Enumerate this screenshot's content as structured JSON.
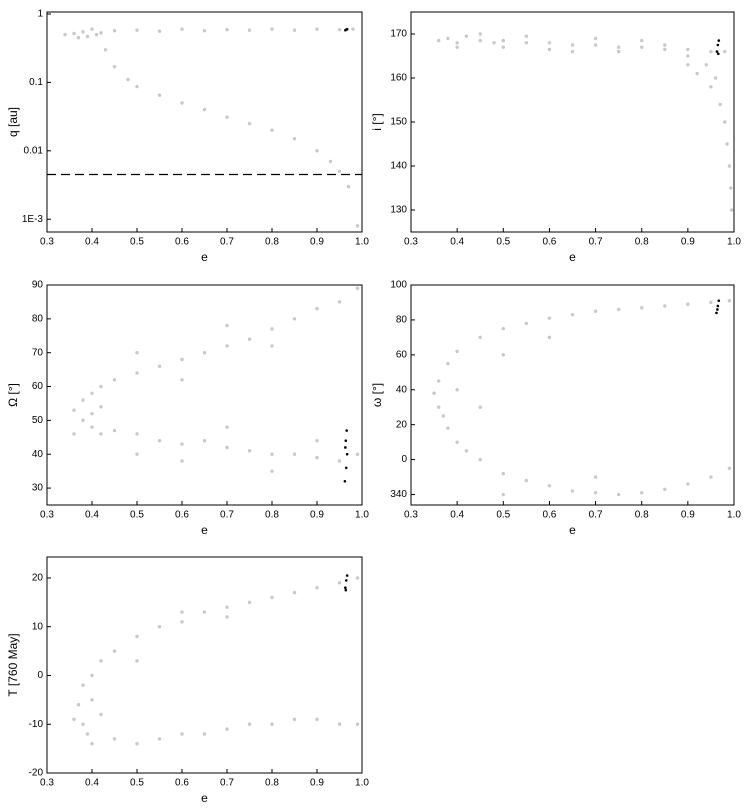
{
  "chart_data": [
    {
      "type": "scatter",
      "x_label": "e",
      "y_label": "q [au]",
      "log_y": true,
      "xlim": [
        0.3,
        1.0
      ],
      "ylim": [
        0.00065,
        1.07
      ],
      "xticks": [
        0.3,
        0.4,
        0.5,
        0.6,
        0.7,
        0.8,
        0.9,
        {
          "value": 1.0,
          "label": "1.0"
        }
      ],
      "yticks": [
        {
          "value": 0.001,
          "label": "1E-3"
        },
        0.01,
        0.1,
        1
      ],
      "reference_line": 0.0045,
      "series": [
        {
          "color": "#c8c8c8",
          "x": [
            0.34,
            0.36,
            0.38,
            0.4,
            0.42,
            0.45,
            0.5,
            0.55,
            0.6,
            0.65,
            0.7,
            0.75,
            0.8,
            0.85,
            0.9,
            0.95,
            0.98,
            0.37,
            0.39,
            0.41,
            0.43,
            0.45,
            0.48,
            0.5,
            0.55,
            0.6,
            0.65,
            0.7,
            0.75,
            0.8,
            0.85,
            0.9,
            0.93,
            0.95,
            0.97,
            0.99
          ],
          "y": [
            0.5,
            0.52,
            0.55,
            0.6,
            0.53,
            0.57,
            0.58,
            0.56,
            0.6,
            0.57,
            0.59,
            0.58,
            0.6,
            0.58,
            0.6,
            0.59,
            0.6,
            0.45,
            0.47,
            0.5,
            0.3,
            0.17,
            0.11,
            0.087,
            0.065,
            0.05,
            0.04,
            0.031,
            0.025,
            0.02,
            0.015,
            0.01,
            0.007,
            0.005,
            0.003,
            0.0008
          ]
        },
        {
          "color": "#000000",
          "x": [
            0.965,
            0.967,
            0.963
          ],
          "y": [
            0.59,
            0.6,
            0.58
          ]
        }
      ]
    },
    {
      "type": "scatter",
      "x_label": "e",
      "y_label": "i [°]",
      "xlim": [
        0.3,
        1.0
      ],
      "ylim": [
        125,
        175
      ],
      "xticks": [
        0.3,
        0.4,
        0.5,
        0.6,
        0.7,
        0.8,
        0.9,
        {
          "value": 1.0,
          "label": "1.0"
        }
      ],
      "yticks": [
        130,
        140,
        150,
        160,
        170
      ],
      "series": [
        {
          "color": "#c8c8c8",
          "x": [
            0.36,
            0.38,
            0.4,
            0.42,
            0.45,
            0.48,
            0.5,
            0.55,
            0.6,
            0.65,
            0.7,
            0.75,
            0.8,
            0.85,
            0.9,
            0.95,
            0.98,
            0.4,
            0.5,
            0.6,
            0.7,
            0.8,
            0.9,
            0.45,
            0.55,
            0.65,
            0.75,
            0.85,
            0.9,
            0.92,
            0.95,
            0.97,
            0.98,
            0.985,
            0.99,
            0.993,
            0.995,
            0.96,
            0.94
          ],
          "y": [
            168.5,
            169,
            168,
            169.5,
            168.5,
            168,
            168.5,
            168,
            168,
            167.5,
            167.5,
            167,
            167,
            166.5,
            166.5,
            166,
            166,
            167,
            167,
            166.5,
            169,
            168.5,
            165,
            170,
            169.5,
            166,
            166,
            167.5,
            163,
            161,
            158,
            154,
            150,
            145,
            140,
            135,
            130,
            160,
            163
          ]
        },
        {
          "color": "#000000",
          "x": [
            0.963,
            0.965,
            0.967,
            0.966
          ],
          "y": [
            166,
            167.5,
            168.5,
            165.5
          ]
        }
      ]
    },
    {
      "type": "scatter",
      "x_label": "e",
      "y_label": "Ω [°]",
      "xlim": [
        0.3,
        1.0
      ],
      "ylim": [
        25,
        90
      ],
      "xticks": [
        0.3,
        0.4,
        0.5,
        0.6,
        0.7,
        0.8,
        0.9,
        {
          "value": 1.0,
          "label": "1.0"
        }
      ],
      "yticks": [
        30,
        40,
        50,
        60,
        70,
        80,
        90
      ],
      "series": [
        {
          "color": "#c8c8c8",
          "x": [
            0.36,
            0.38,
            0.4,
            0.42,
            0.45,
            0.5,
            0.55,
            0.6,
            0.65,
            0.7,
            0.75,
            0.8,
            0.85,
            0.9,
            0.95,
            0.99,
            0.5,
            0.6,
            0.7,
            0.8,
            0.38,
            0.4,
            0.42,
            0.4,
            0.36,
            0.42,
            0.45,
            0.5,
            0.55,
            0.6,
            0.65,
            0.7,
            0.75,
            0.8,
            0.85,
            0.9,
            0.95,
            0.99,
            0.6,
            0.7,
            0.8,
            0.9,
            0.5
          ],
          "y": [
            53,
            56,
            58,
            60,
            62,
            64,
            66,
            68,
            70,
            72,
            74,
            77,
            80,
            83,
            85,
            89,
            70,
            62,
            78,
            72,
            50,
            52,
            54,
            48,
            46,
            46,
            47,
            46,
            44,
            43,
            44,
            42,
            41,
            40,
            40,
            39,
            38,
            40,
            38,
            48,
            35,
            44,
            40
          ]
        },
        {
          "color": "#000000",
          "x": [
            0.962,
            0.965,
            0.967,
            0.964,
            0.966,
            0.963
          ],
          "y": [
            32,
            36,
            40,
            44,
            47,
            42
          ]
        }
      ]
    },
    {
      "type": "scatter",
      "x_label": "e",
      "y_label": "ω [°]",
      "xlim": [
        0.3,
        1.0
      ],
      "ylim": [
        -26,
        100
      ],
      "xticks": [
        0.3,
        0.4,
        0.5,
        0.6,
        0.7,
        0.8,
        0.9,
        {
          "value": 1.0,
          "label": "1.0"
        }
      ],
      "yticks": [
        {
          "value": -20,
          "label": "340"
        },
        0,
        20,
        40,
        60,
        80,
        100
      ],
      "series": [
        {
          "color": "#c8c8c8",
          "x": [
            0.36,
            0.38,
            0.4,
            0.45,
            0.5,
            0.55,
            0.6,
            0.65,
            0.7,
            0.75,
            0.8,
            0.85,
            0.9,
            0.95,
            0.99,
            0.35,
            0.36,
            0.37,
            0.38,
            0.4,
            0.42,
            0.45,
            0.5,
            0.55,
            0.6,
            0.65,
            0.7,
            0.75,
            0.8,
            0.85,
            0.9,
            0.95,
            0.99,
            0.4,
            0.45,
            0.5,
            0.6,
            0.7,
            0.5
          ],
          "y": [
            45,
            55,
            62,
            70,
            75,
            78,
            81,
            83,
            85,
            86,
            87,
            88,
            89,
            90,
            91,
            38,
            30,
            25,
            18,
            10,
            5,
            0,
            -8,
            -12,
            -15,
            -18,
            -19,
            -20,
            -19,
            -17,
            -14,
            -10,
            -5,
            40,
            30,
            60,
            70,
            -10,
            -20
          ]
        },
        {
          "color": "#000000",
          "x": [
            0.962,
            0.965,
            0.967,
            0.964
          ],
          "y": [
            84,
            88,
            91,
            86
          ]
        }
      ]
    },
    {
      "type": "scatter",
      "x_label": "e",
      "y_label": "T [760 May]",
      "xlim": [
        0.3,
        1.0
      ],
      "ylim": [
        -20,
        24.3
      ],
      "xticks": [
        0.3,
        0.4,
        0.5,
        0.6,
        0.7,
        0.8,
        0.9,
        {
          "value": 1.0,
          "label": "1.0"
        }
      ],
      "yticks": [
        -20,
        -10,
        0,
        10,
        20
      ],
      "series": [
        {
          "color": "#c8c8c8",
          "x": [
            0.37,
            0.38,
            0.4,
            0.42,
            0.45,
            0.5,
            0.55,
            0.6,
            0.65,
            0.7,
            0.75,
            0.8,
            0.85,
            0.9,
            0.95,
            0.99,
            0.36,
            0.38,
            0.39,
            0.4,
            0.45,
            0.5,
            0.55,
            0.6,
            0.65,
            0.7,
            0.75,
            0.8,
            0.85,
            0.9,
            0.95,
            0.99,
            0.4,
            0.42,
            0.5,
            0.6,
            0.7
          ],
          "y": [
            -6,
            -2,
            0,
            3,
            5,
            8,
            10,
            11,
            13,
            14,
            15,
            16,
            17,
            18,
            19,
            20,
            -9,
            -10,
            -12,
            -14,
            -13,
            -14,
            -13,
            -12,
            -12,
            -11,
            -10,
            -10,
            -9,
            -9,
            -10,
            -10,
            -5,
            -8,
            3,
            13,
            12
          ]
        },
        {
          "color": "#000000",
          "x": [
            0.963,
            0.965,
            0.967,
            0.964
          ],
          "y": [
            18,
            19.5,
            20.5,
            17.5
          ]
        }
      ]
    }
  ]
}
